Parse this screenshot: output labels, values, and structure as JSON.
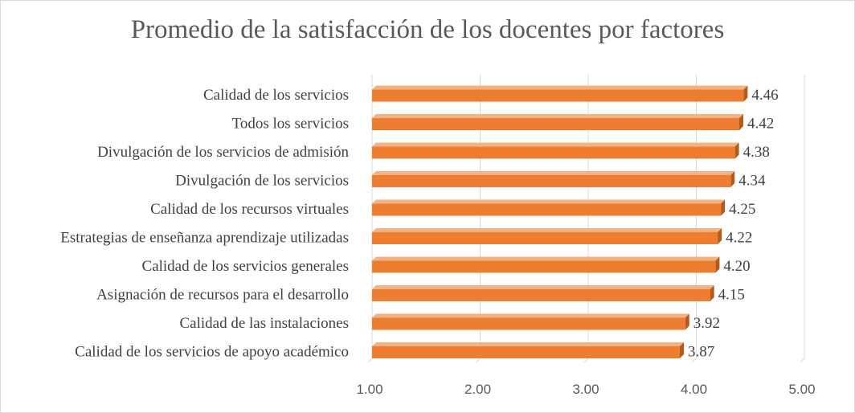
{
  "chart_data": {
    "type": "bar",
    "orientation": "horizontal",
    "title": "Promedio de la satisfacción de los docentes por factores",
    "categories": [
      "Calidad de los servicios",
      "Todos los servicios",
      "Divulgación de los servicios de admisión",
      "Divulgación de los servicios",
      "Calidad de los recursos virtuales",
      "Estrategias de enseñanza aprendizaje utilizadas",
      "Calidad de los servicios generales",
      "Asignación de recursos para el desarrollo",
      "Calidad de las instalaciones",
      "Calidad de los servicios de apoyo académico"
    ],
    "values": [
      4.46,
      4.42,
      4.38,
      4.34,
      4.25,
      4.22,
      4.2,
      4.15,
      3.92,
      3.87
    ],
    "value_labels": [
      "4.46",
      "4.42",
      "4.38",
      "4.34",
      "4.25",
      "4.22",
      "4.20",
      "4.15",
      "3.92",
      "3.87"
    ],
    "xlim": [
      1,
      5
    ],
    "x_ticks": [
      1,
      2,
      3,
      4,
      5
    ],
    "x_tick_labels": [
      "1.00",
      "2.00",
      "3.00",
      "4.00",
      "5.00"
    ],
    "grid": true,
    "legend": "none",
    "colors": {
      "bar_front": "#ed7d31",
      "bar_top": "#f4b183",
      "bar_side": "#b45a1b",
      "grid": "#d9d9d9"
    }
  }
}
